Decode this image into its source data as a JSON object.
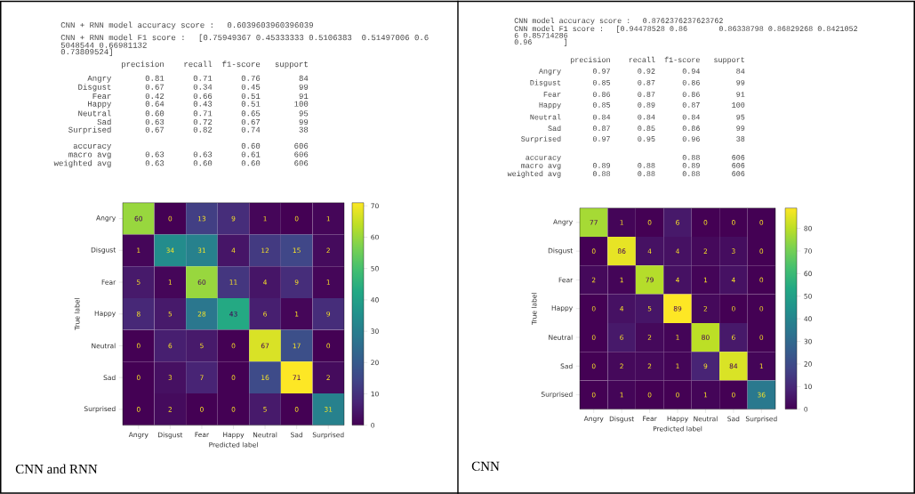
{
  "chart_data": [
    {
      "type": "heatmap",
      "title": "CNN and RNN",
      "xlabel": "Predicted label",
      "ylabel": "True label",
      "categories": [
        "Angry",
        "Disgust",
        "Fear",
        "Happy",
        "Neutral",
        "Sad",
        "Surprised"
      ],
      "y_categories": [
        "Angry",
        "Disgust",
        "Fear",
        "Happy",
        "Neutral",
        "Sad",
        "Surprised"
      ],
      "cells": [
        [
          60,
          0,
          13,
          9,
          1,
          0,
          1
        ],
        [
          1,
          34,
          31,
          4,
          12,
          15,
          2
        ],
        [
          5,
          1,
          60,
          11,
          4,
          9,
          1
        ],
        [
          8,
          5,
          28,
          43,
          6,
          1,
          9
        ],
        [
          0,
          6,
          5,
          0,
          67,
          17,
          0
        ],
        [
          0,
          3,
          7,
          0,
          16,
          71,
          2
        ],
        [
          0,
          2,
          0,
          0,
          5,
          0,
          31
        ]
      ],
      "clim": [
        0,
        71
      ],
      "cticks": [
        0,
        10,
        20,
        30,
        40,
        50,
        60,
        70
      ],
      "data_labels": true,
      "annotations": [
        "CNN + RNN model accuracy score :  0.6039603960396039",
        "CNN + RNN model F1 score :  [0.75949367 0.45333333 0.5106383  0.51497006 0.6",
        "5048544 0.66981132",
        "0.73809524]",
        "precision    recall  f1-score   support",
        "Angry       0.81      0.71      0.76        84",
        "Disgust       0.67      0.34      0.45        99",
        "Fear       0.42      0.66      0.51        91",
        "Happy       0.64      0.43      0.51       100",
        "Neutral       0.60      0.71      0.65        95",
        "Sad       0.63      0.72      0.67        99",
        "Surprised       0.67      0.82      0.74        38",
        "accuracy                           0.60       606",
        "macro avg       0.63      0.63      0.61       606",
        "weighted avg       0.63      0.60      0.60       606"
      ]
    },
    {
      "type": "heatmap",
      "title": "CNN",
      "xlabel": "Predicted label",
      "ylabel": "True label",
      "categories": [
        "Angry",
        "Disgust",
        "Fear",
        "Happy",
        "Neutral",
        "Sad",
        "Surprised"
      ],
      "y_categories": [
        "Angry",
        "Disgust",
        "Fear",
        "Happy",
        "Neutral",
        "Sad",
        "Surprised"
      ],
      "cells": [
        [
          77,
          1,
          0,
          6,
          0,
          0,
          0
        ],
        [
          0,
          86,
          4,
          4,
          2,
          3,
          0
        ],
        [
          2,
          1,
          79,
          4,
          1,
          4,
          0
        ],
        [
          0,
          4,
          5,
          89,
          2,
          0,
          0
        ],
        [
          0,
          6,
          2,
          1,
          80,
          6,
          0
        ],
        [
          0,
          2,
          2,
          1,
          9,
          84,
          1
        ],
        [
          0,
          1,
          0,
          0,
          1,
          0,
          36
        ]
      ],
      "clim": [
        0,
        89
      ],
      "cticks": [
        0,
        10,
        20,
        30,
        40,
        50,
        60,
        70,
        80
      ],
      "data_labels": true,
      "annotations": [
        "CNN model accuracy score :  0.8762376237623762",
        "CNN model F1 score :  [0.94478528 0.86       0.86338798 0.86829268 0.8421052",
        "6 0.85714286",
        "0.96       ]",
        "precision    recall  f1-score   support",
        "Angry       0.97      0.92      0.94        84",
        "Disgust       0.85      0.87      0.86        99",
        "Fear       0.86      0.87      0.86        91",
        "Happy       0.85      0.89      0.87       100",
        "Neutral       0.84      0.84      0.84        95",
        "Sad       0.87      0.85      0.86        99",
        "Surprised       0.97      0.95      0.96        38",
        "accuracy                           0.88       606",
        "macro avg       0.89      0.88      0.89       606",
        "weighted avg       0.88      0.88      0.88       606"
      ]
    }
  ]
}
